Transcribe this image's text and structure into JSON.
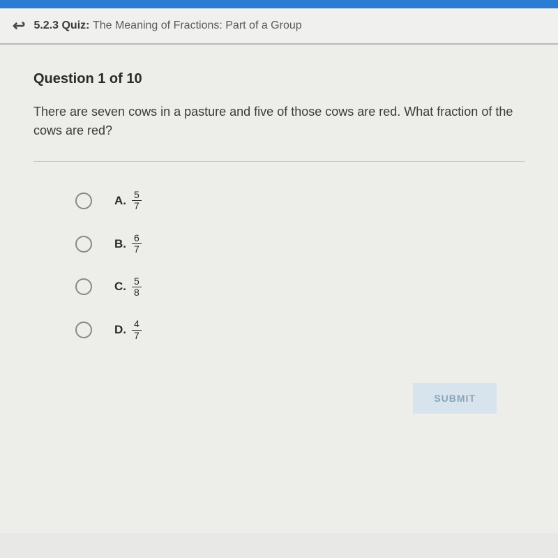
{
  "header": {
    "quiz_number": "5.2.3",
    "quiz_label": "Quiz:",
    "quiz_title": "The Meaning of Fractions: Part of a Group"
  },
  "question": {
    "number_label": "Question 1 of 10",
    "text": "There are seven cows in a pasture and five of those cows are red. What fraction of the cows are red?"
  },
  "options": [
    {
      "letter": "A.",
      "numerator": "5",
      "denominator": "7"
    },
    {
      "letter": "B.",
      "numerator": "6",
      "denominator": "7"
    },
    {
      "letter": "C.",
      "numerator": "5",
      "denominator": "8"
    },
    {
      "letter": "D.",
      "numerator": "4",
      "denominator": "7"
    }
  ],
  "submit_label": "SUBMIT",
  "colors": {
    "top_bar": "#2b7cd3",
    "background": "#edede9",
    "submit_bg": "#d8e4ed",
    "submit_text": "#8aa5b8"
  }
}
